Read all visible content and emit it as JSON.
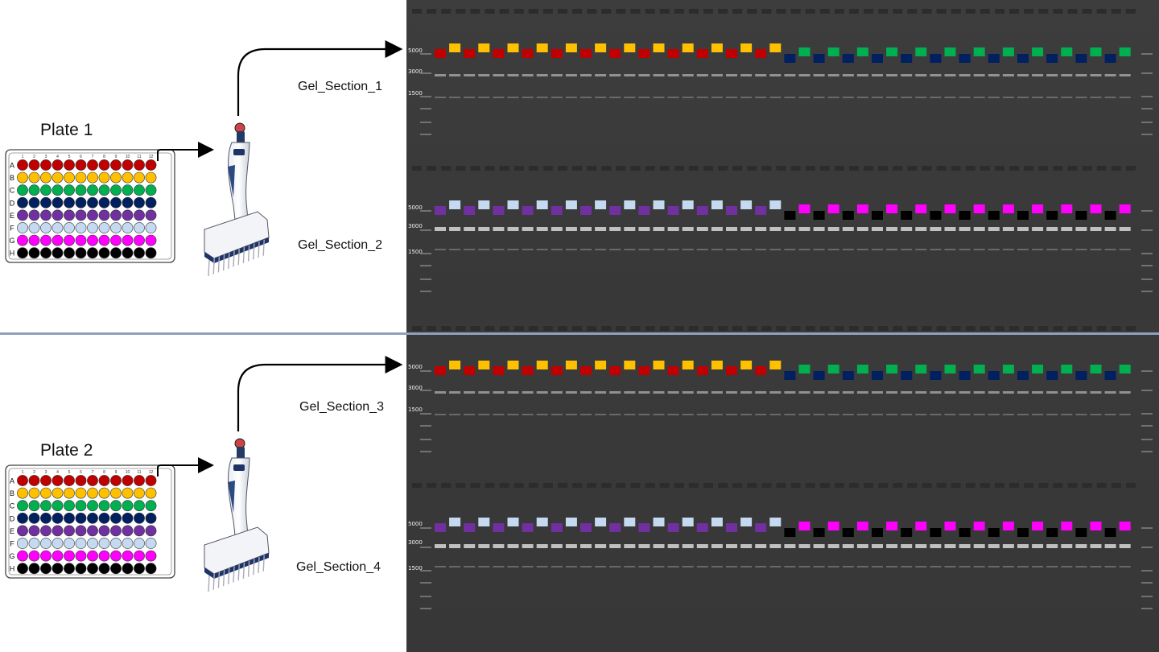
{
  "plates": [
    {
      "id": "plate1",
      "title": "Plate 1"
    },
    {
      "id": "plate2",
      "title": "Plate 2"
    }
  ],
  "plate_row_letters": [
    "A",
    "B",
    "C",
    "D",
    "E",
    "F",
    "G",
    "H"
  ],
  "plate_column_numbers": [
    "1",
    "2",
    "3",
    "4",
    "5",
    "6",
    "7",
    "8",
    "9",
    "10",
    "11",
    "12"
  ],
  "row_colors": [
    "#c00000",
    "#ffc000",
    "#00b050",
    "#002060",
    "#7030a0",
    "#c5d9f1",
    "#ff00ff",
    "#000000"
  ],
  "gel_sections": [
    {
      "id": "gel-section-1",
      "label": "Gel_Section_1",
      "ladder_labels": [
        "5000",
        "3000",
        "1500"
      ],
      "left_rows": [
        "A",
        "B"
      ],
      "right_rows": [
        "C",
        "D"
      ]
    },
    {
      "id": "gel-section-2",
      "label": "Gel_Section_2",
      "ladder_labels": [
        "5000",
        "3000",
        "1500"
      ],
      "left_rows": [
        "E",
        "F"
      ],
      "right_rows": [
        "G",
        "H"
      ]
    },
    {
      "id": "gel-section-3",
      "label": "Gel_Section_3",
      "ladder_labels": [
        "5000",
        "3000",
        "1500"
      ],
      "left_rows": [
        "A",
        "B"
      ],
      "right_rows": [
        "C",
        "D"
      ]
    },
    {
      "id": "gel-section-4",
      "label": "Gel_Section_4",
      "ladder_labels": [
        "5000",
        "3000",
        "1500"
      ],
      "left_rows": [
        "E",
        "F"
      ],
      "right_rows": [
        "G",
        "H"
      ]
    }
  ],
  "colors": {
    "gel_background": "#3a3a3a",
    "divider": "#8ea0c0",
    "arrow": "#000000"
  },
  "icons": [
    "multichannel-pipette-icon",
    "arrow-icon"
  ]
}
